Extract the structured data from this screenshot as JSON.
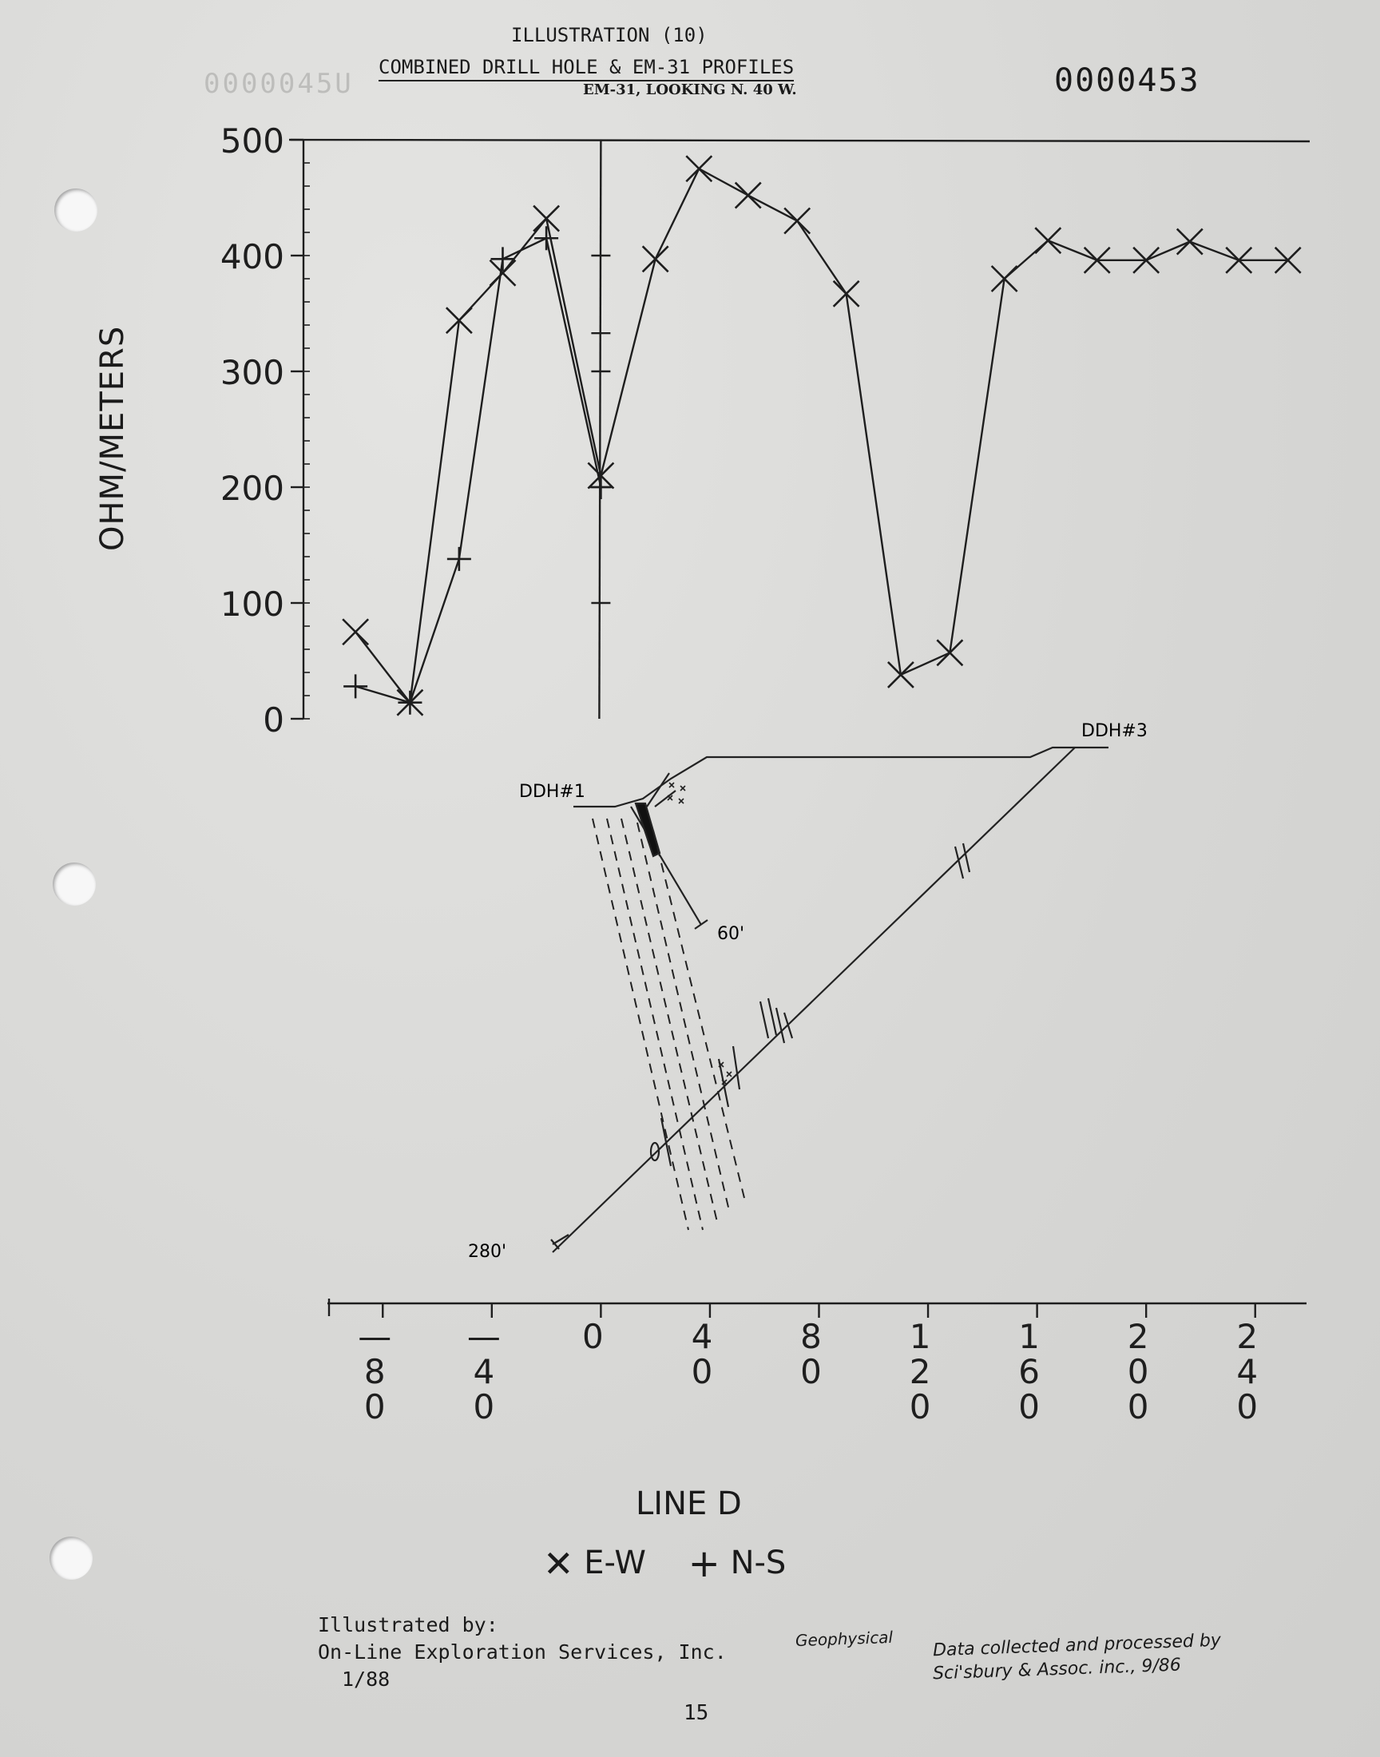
{
  "header": {
    "illustration": "ILLUSTRATION (10)",
    "title": "COMBINED DRILL HOLE & EM-31 PROFILES",
    "subtitle": "EM-31, LOOKING N. 40 W.",
    "doc_number": "0000453",
    "ghost_number": "0000045U"
  },
  "chart_data": {
    "type": "line",
    "title": "COMBINED DRILL HOLE & EM-31 PROFILES",
    "ylabel": "OHM/METERS",
    "xlabel": "LINE D",
    "ylim": [
      0,
      500
    ],
    "xlim": [
      -100,
      260
    ],
    "yticks": [
      0,
      100,
      200,
      300,
      400,
      500
    ],
    "xticks": [
      {
        "value": -80,
        "label": [
          "—",
          "8",
          "0"
        ]
      },
      {
        "value": -40,
        "label": [
          "—",
          "4",
          "0"
        ]
      },
      {
        "value": 0,
        "label": [
          "0"
        ]
      },
      {
        "value": 40,
        "label": [
          "4",
          "0"
        ]
      },
      {
        "value": 80,
        "label": [
          "8",
          "0"
        ]
      },
      {
        "value": 120,
        "label": [
          "1",
          "2",
          "0"
        ]
      },
      {
        "value": 160,
        "label": [
          "1",
          "6",
          "0"
        ]
      },
      {
        "value": 200,
        "label": [
          "2",
          "0",
          "0"
        ]
      },
      {
        "value": 240,
        "label": [
          "2",
          "4",
          "0"
        ]
      }
    ],
    "series": [
      {
        "name": "E-W",
        "marker": "x",
        "x": [
          -90,
          -70,
          -52,
          -36,
          -20,
          0,
          20,
          36,
          54,
          72,
          90,
          110,
          128,
          148,
          164,
          182,
          200,
          216,
          234,
          252
        ],
        "y": [
          75,
          14,
          344,
          385,
          432,
          210,
          397,
          475,
          452,
          430,
          367,
          38,
          57,
          380,
          413,
          396,
          396,
          412,
          396,
          396
        ]
      },
      {
        "name": "N-S",
        "marker": "+",
        "x": [
          -90,
          -70,
          -52,
          -36,
          -20,
          0
        ],
        "y": [
          28,
          14,
          138,
          397,
          415,
          200
        ]
      }
    ],
    "ns_tick_marks_at_zero": [
      100,
      200,
      300,
      333,
      400
    ],
    "legend": {
      "placement": "bottom",
      "entries": [
        "E-W",
        "N-S"
      ]
    }
  },
  "cross_section": {
    "ddh1_label": "DDH#1",
    "ddh3_label": "DDH#3",
    "depth_60": "60'",
    "depth_280": "280'"
  },
  "footer": {
    "illustrated_by": "Illustrated by:",
    "company": "On-Line Exploration Services, Inc.",
    "date": "1/88",
    "geophysical": "Geophysical",
    "collected_line1": "Data collected and processed by",
    "collected_line2": "Sci'sbury & Assoc. inc., 9/86",
    "page_number": "15"
  },
  "legend_text": {
    "ew_label": "E-W",
    "ns_label": "N-S"
  }
}
